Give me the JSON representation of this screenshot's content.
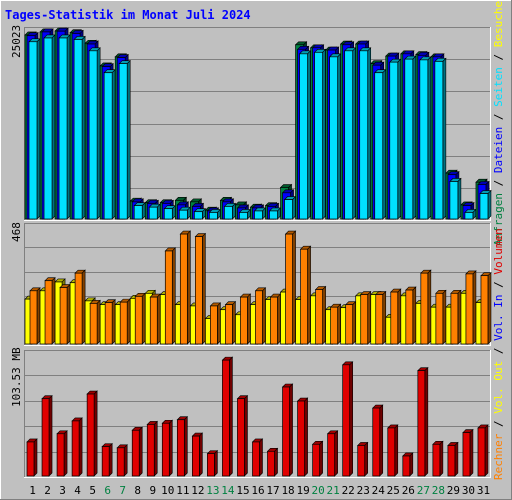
{
  "title": "Tages-Statistik im Monat Juli 2024",
  "colors": {
    "background": "#c0c0c0",
    "title": "#0000ff",
    "anfragen": "#008040",
    "dateien": "#0000ff",
    "seiten": "#00e0ff",
    "besuche": "#ffff00",
    "rechner": "#ff8000",
    "volumen": "#e00000"
  },
  "panels": {
    "top": {
      "max_label": "25023",
      "right_legend": [
        {
          "text": "Anfragen",
          "color": "#008040"
        },
        {
          "text": " / ",
          "color": "#000000"
        },
        {
          "text": "Dateien",
          "color": "#0000ff"
        },
        {
          "text": " / ",
          "color": "#000000"
        },
        {
          "text": "Seiten",
          "color": "#00e0ff"
        },
        {
          "text": " / ",
          "color": "#000000"
        },
        {
          "text": "Besuche",
          "color": "#ffff00"
        }
      ]
    },
    "mid": {
      "max_label": "468",
      "right_legend": [
        {
          "text": "Rechner",
          "color": "#ff8000"
        },
        {
          "text": " / ",
          "color": "#000000"
        },
        {
          "text": "Vol. Out",
          "color": "#ffff00"
        },
        {
          "text": " / ",
          "color": "#000000"
        },
        {
          "text": "Vol. In",
          "color": "#0000ff"
        },
        {
          "text": " / ",
          "color": "#000000"
        },
        {
          "text": "Volumen",
          "color": "#e00000"
        }
      ]
    },
    "bottom": {
      "max_label": "103.53 MB"
    }
  },
  "chart_data": [
    {
      "type": "bar",
      "title": "Tages-Statistik im Monat Juli 2024",
      "categories": [
        "1",
        "2",
        "3",
        "4",
        "5",
        "6",
        "7",
        "8",
        "9",
        "10",
        "11",
        "12",
        "13",
        "14",
        "15",
        "16",
        "17",
        "18",
        "19",
        "20",
        "21",
        "22",
        "23",
        "24",
        "25",
        "26",
        "27",
        "28",
        "29",
        "30",
        "31"
      ],
      "weekend_days": [
        "6",
        "7",
        "13",
        "14",
        "20",
        "21",
        "27",
        "28"
      ],
      "ylim": [
        0,
        25023
      ],
      "series": [
        {
          "name": "Anfragen",
          "values": [
            24500,
            24900,
            25023,
            24800,
            23400,
            20400,
            21600,
            2500,
            2300,
            2300,
            2600,
            2400,
            1300,
            2600,
            2000,
            1700,
            1900,
            4300,
            23200,
            22800,
            22500,
            23300,
            23300,
            20700,
            21700,
            22000,
            21900,
            21600,
            6200,
            2000,
            5000
          ]
        },
        {
          "name": "Dateien",
          "values": [
            24400,
            24900,
            25000,
            24700,
            23300,
            20300,
            21500,
            2400,
            2200,
            2200,
            2000,
            1800,
            1200,
            2400,
            1600,
            1600,
            1800,
            3600,
            22600,
            22800,
            22500,
            23200,
            23300,
            20500,
            21700,
            22000,
            21800,
            21600,
            6000,
            1900,
            4700
          ]
        },
        {
          "name": "Seiten",
          "values": [
            23600,
            24100,
            24100,
            23900,
            22400,
            19500,
            20700,
            1900,
            1700,
            1500,
            1300,
            1100,
            1000,
            1800,
            1000,
            1200,
            1200,
            2700,
            22000,
            22200,
            21600,
            22400,
            22400,
            19500,
            20900,
            21300,
            21200,
            21000,
            5100,
            1000,
            3500
          ]
        }
      ]
    },
    {
      "type": "bar",
      "categories": [
        "1",
        "2",
        "3",
        "4",
        "5",
        "6",
        "7",
        "8",
        "9",
        "10",
        "11",
        "12",
        "13",
        "14",
        "15",
        "16",
        "17",
        "18",
        "19",
        "20",
        "21",
        "22",
        "23",
        "24",
        "25",
        "26",
        "27",
        "28",
        "29",
        "30",
        "31"
      ],
      "ylim": [
        0,
        468
      ],
      "series": [
        {
          "name": "Besuche",
          "values": [
            182,
            215,
            250,
            247,
            175,
            160,
            160,
            185,
            205,
            200,
            160,
            155,
            105,
            140,
            120,
            160,
            180,
            210,
            180,
            195,
            140,
            148,
            195,
            200,
            110,
            195,
            165,
            150,
            150,
            205,
            168
          ]
        },
        {
          "name": "Rechner",
          "values": [
            215,
            255,
            228,
            285,
            165,
            168,
            170,
            193,
            190,
            373,
            440,
            430,
            155,
            160,
            190,
            215,
            190,
            440,
            380,
            220,
            150,
            160,
            200,
            200,
            210,
            218,
            285,
            205,
            205,
            282,
            275
          ]
        }
      ]
    },
    {
      "type": "bar",
      "categories": [
        "1",
        "2",
        "3",
        "4",
        "5",
        "6",
        "7",
        "8",
        "9",
        "10",
        "11",
        "12",
        "13",
        "14",
        "15",
        "16",
        "17",
        "18",
        "19",
        "20",
        "21",
        "22",
        "23",
        "24",
        "25",
        "26",
        "27",
        "28",
        "29",
        "30",
        "31"
      ],
      "ylim": [
        0,
        103.53
      ],
      "ylabel": "103.53 MB",
      "series": [
        {
          "name": "Volumen",
          "values": [
            30,
            67,
            37,
            48,
            71,
            26,
            25,
            40,
            45,
            46,
            49,
            35,
            20,
            100,
            67,
            30,
            22,
            77,
            65,
            28,
            37,
            96,
            27,
            59,
            42,
            18,
            91,
            28,
            27,
            38,
            42
          ]
        }
      ]
    }
  ]
}
